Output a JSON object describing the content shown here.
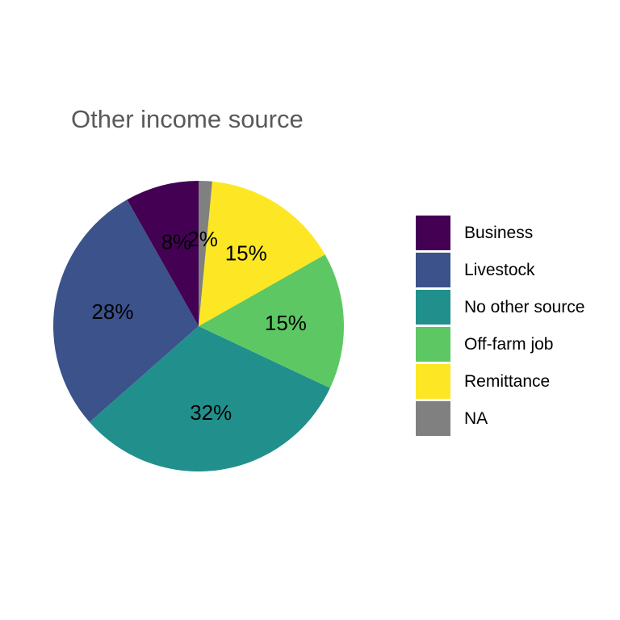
{
  "chart_data": {
    "type": "pie",
    "title": "Other income source",
    "categories": [
      "Business",
      "Livestock",
      "No other source",
      "Off-farm job",
      "Remittance",
      "NA"
    ],
    "values": [
      8.2,
      28.3,
      31.5,
      15.2,
      15.3,
      1.5
    ],
    "labels": [
      "8%",
      "28%",
      "32%",
      "15%",
      "15%",
      "2%"
    ],
    "colors": [
      "#440154",
      "#3b528b",
      "#21908c",
      "#5dc863",
      "#fde725",
      "#808080"
    ],
    "direction": "counterclockwise",
    "start": "top",
    "legend_position": "right"
  }
}
